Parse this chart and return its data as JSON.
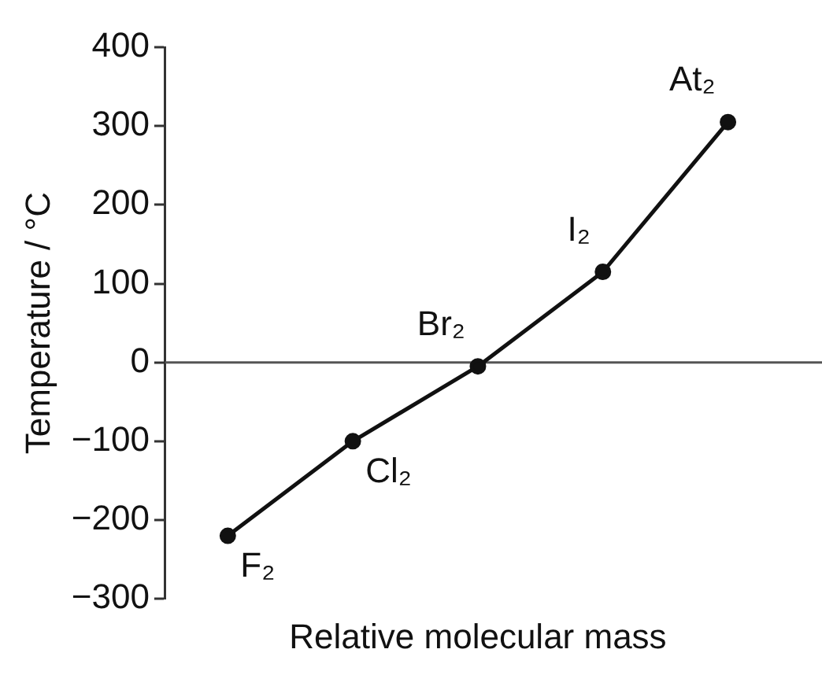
{
  "chart_data": {
    "type": "line",
    "xlabel": "Relative molecular mass",
    "ylabel": "Temperature / °C",
    "categories": [
      null,
      null,
      null,
      null,
      null
    ],
    "series": [
      {
        "color": "#111111",
        "values": [
          -220,
          -100,
          -5,
          115,
          305
        ],
        "value_labels": [
          "F₂",
          "Cl₂",
          "Br₂",
          "I₂",
          "At₂"
        ]
      }
    ],
    "ylim": [
      -300,
      400
    ],
    "yticks": [
      {
        "value": -300,
        "label": "−300"
      },
      {
        "value": -200,
        "label": "−200"
      },
      {
        "value": -100,
        "label": "−100"
      },
      0,
      100,
      200,
      300,
      400
    ],
    "ref_lines": [
      {
        "axis": "y",
        "value": 0,
        "color": "#555555"
      }
    ],
    "tick_labels": "y",
    "grid": false,
    "legend": false,
    "marker": "circle",
    "line_style": "solid"
  }
}
